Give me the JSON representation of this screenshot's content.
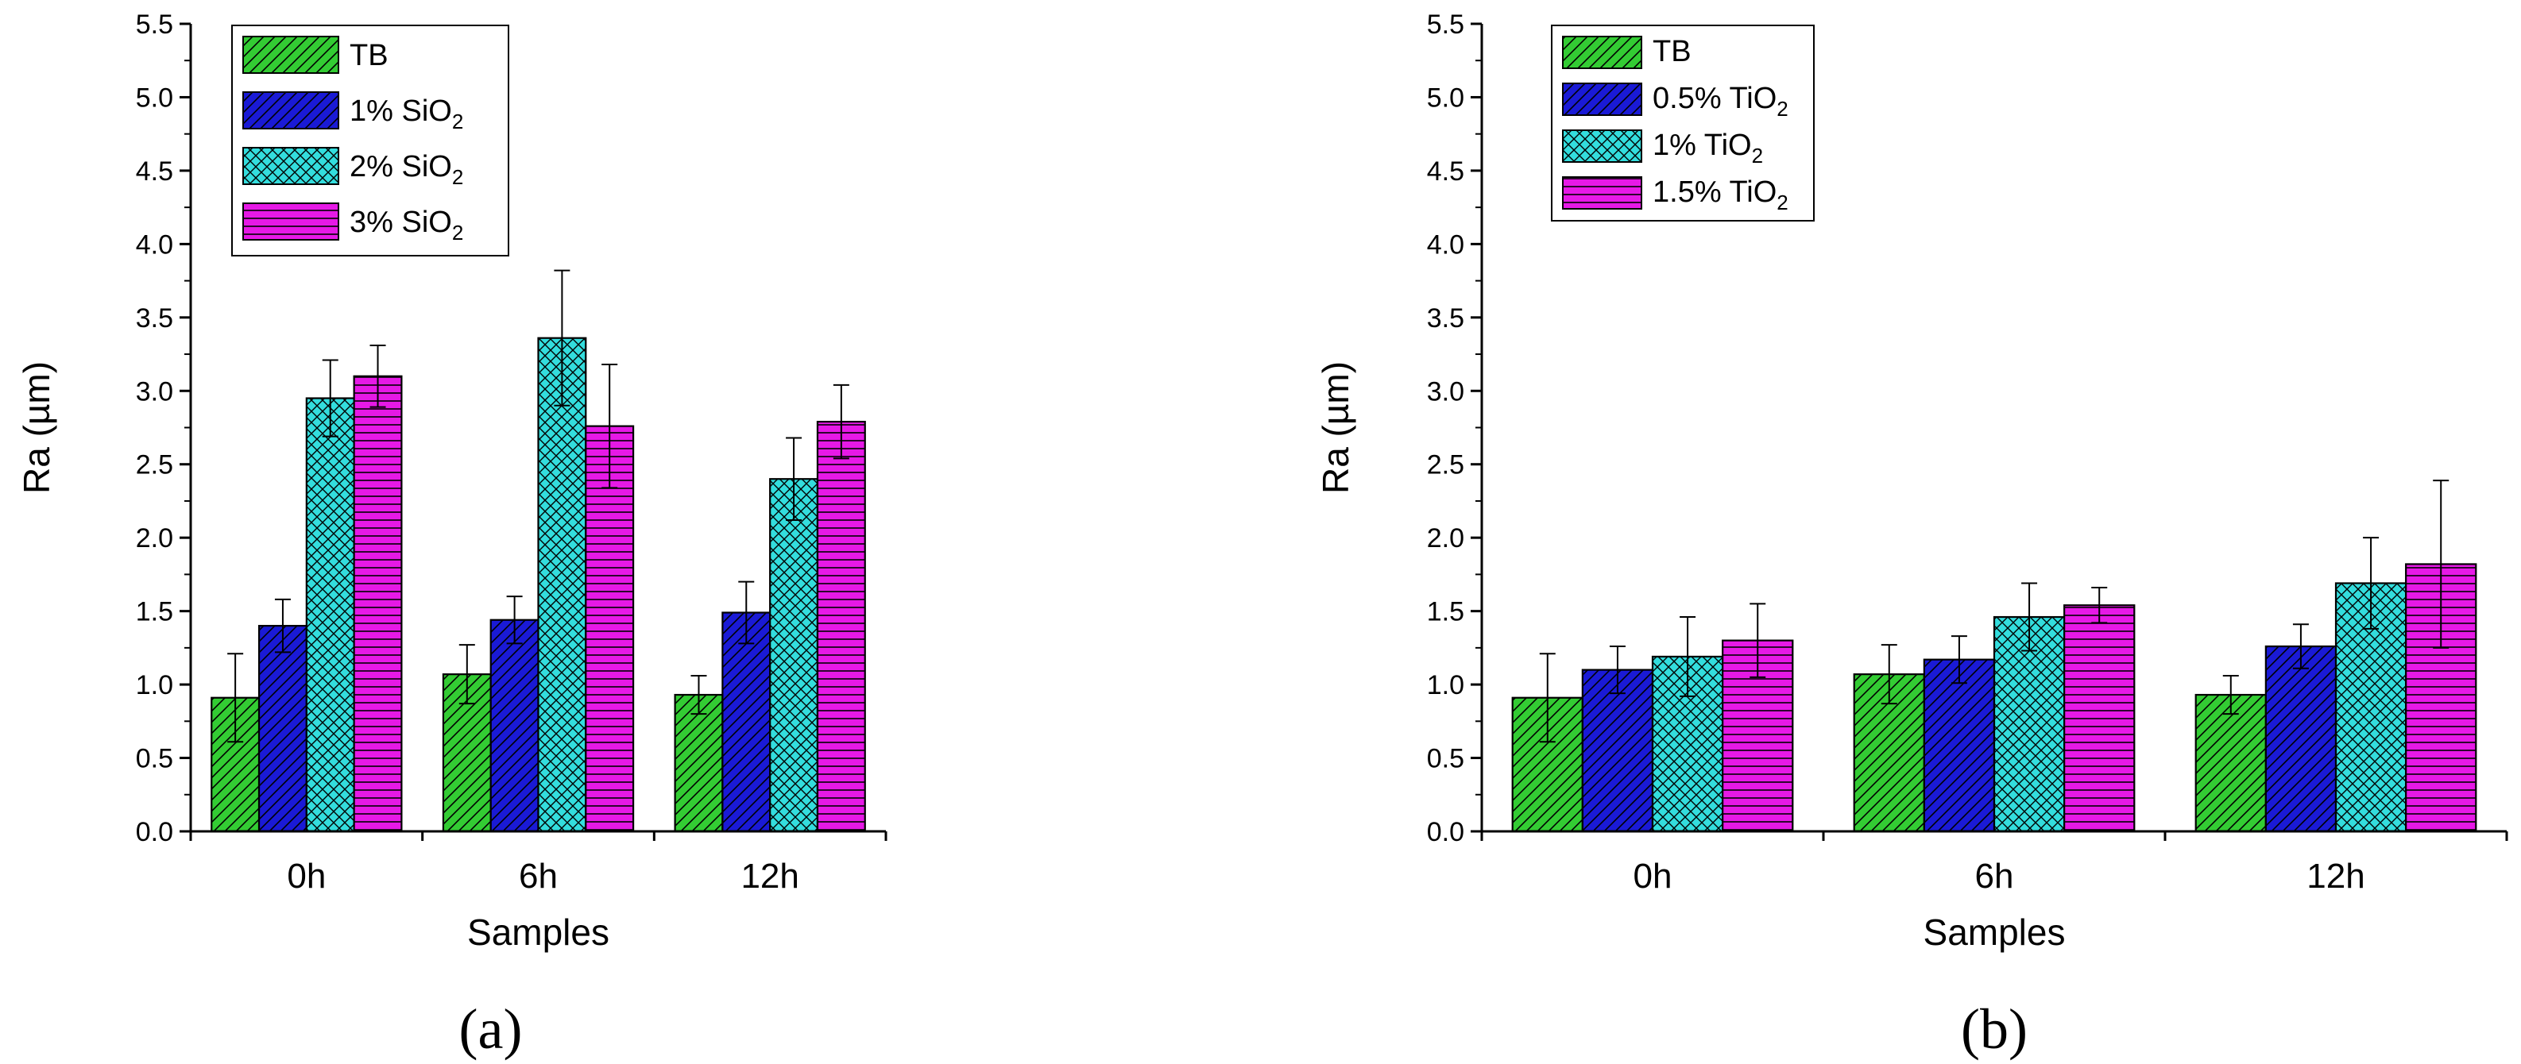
{
  "colors": {
    "tb": "#33cc33",
    "blue": "#1a1ad6",
    "cyan": "#33dddd",
    "magenta": "#e619e6"
  },
  "chart_data": [
    {
      "type": "bar",
      "panel_label": "(a)",
      "title": "",
      "xlabel": "Samples",
      "ylabel": "Ra (µm)",
      "ylim": [
        0,
        5.5
      ],
      "yticks": [
        "0.0",
        "0.5",
        "1.0",
        "1.5",
        "2.0",
        "2.5",
        "3.0",
        "3.5",
        "4.0",
        "4.5",
        "5.0",
        "5.5"
      ],
      "categories": [
        "0h",
        "6h",
        "12h"
      ],
      "legend_position": "top-left",
      "series": [
        {
          "name": "TB",
          "label_main": "TB",
          "label_sub": "",
          "label_tail": "",
          "pattern": "diag",
          "color_key": "tb",
          "values": [
            0.91,
            1.07,
            0.93
          ],
          "errors": [
            0.3,
            0.2,
            0.13
          ]
        },
        {
          "name": "1% SiO2",
          "label_main": "1% SiO",
          "label_sub": "2",
          "label_tail": "",
          "pattern": "diag",
          "color_key": "blue",
          "values": [
            1.4,
            1.44,
            1.49
          ],
          "errors": [
            0.18,
            0.16,
            0.21
          ]
        },
        {
          "name": "2% SiO2",
          "label_main": "2% SiO",
          "label_sub": "2",
          "label_tail": "",
          "pattern": "cross",
          "color_key": "cyan",
          "values": [
            2.95,
            3.36,
            2.4
          ],
          "errors": [
            0.26,
            0.46,
            0.28
          ]
        },
        {
          "name": "3% SiO2",
          "label_main": "3% SiO",
          "label_sub": "2",
          "label_tail": "",
          "pattern": "horiz",
          "color_key": "magenta",
          "values": [
            3.1,
            2.76,
            2.79
          ],
          "errors": [
            0.21,
            0.42,
            0.25
          ]
        }
      ]
    },
    {
      "type": "bar",
      "panel_label": "(b)",
      "title": "",
      "xlabel": "Samples",
      "ylabel": "Ra (µm)",
      "ylim": [
        0,
        5.5
      ],
      "yticks": [
        "0.0",
        "0.5",
        "1.0",
        "1.5",
        "2.0",
        "2.5",
        "3.0",
        "3.5",
        "4.0",
        "4.5",
        "5.0",
        "5.5"
      ],
      "categories": [
        "0h",
        "6h",
        "12h"
      ],
      "legend_position": "top-left",
      "series": [
        {
          "name": "TB",
          "label_main": "TB",
          "label_sub": "",
          "label_tail": "",
          "pattern": "diag",
          "color_key": "tb",
          "values": [
            0.91,
            1.07,
            0.93
          ],
          "errors": [
            0.3,
            0.2,
            0.13
          ]
        },
        {
          "name": "0.5% TiO2",
          "label_main": "0.5% TiO",
          "label_sub": "2",
          "label_tail": "",
          "pattern": "diag",
          "color_key": "blue",
          "values": [
            1.1,
            1.17,
            1.26
          ],
          "errors": [
            0.16,
            0.16,
            0.15
          ]
        },
        {
          "name": "1% TiO2",
          "label_main": "1% TiO",
          "label_sub": "2",
          "label_tail": "",
          "pattern": "cross",
          "color_key": "cyan",
          "values": [
            1.19,
            1.46,
            1.69
          ],
          "errors": [
            0.27,
            0.23,
            0.31
          ]
        },
        {
          "name": "1.5% TiO2",
          "label_main": "1.5% TiO",
          "label_sub": "2",
          "label_tail": "",
          "pattern": "horiz",
          "color_key": "magenta",
          "values": [
            1.3,
            1.54,
            1.82
          ],
          "errors": [
            0.25,
            0.12,
            0.57
          ]
        }
      ]
    }
  ]
}
